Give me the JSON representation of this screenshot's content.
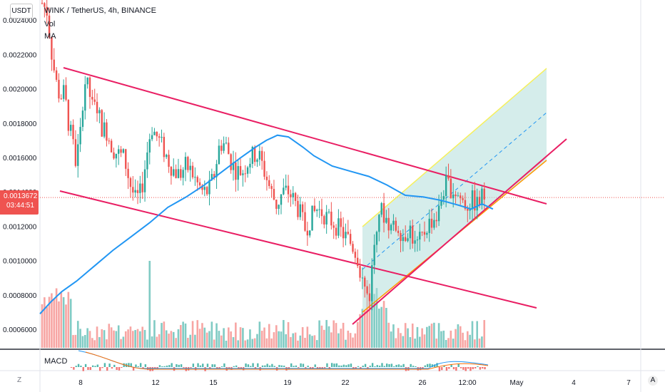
{
  "header": {
    "currency_button": "USDT",
    "symbol_title": "WINK / TetherUS, 4h, BINANCE",
    "indicator_vol": "Vol",
    "indicator_ma": "MA",
    "macd_label": "MACD"
  },
  "price_badge": {
    "price": "0.0013672",
    "countdown": "03:44:51",
    "color": "#ef5350"
  },
  "bottom_bar": {
    "left_button": "Z",
    "right_button": "A"
  },
  "colors": {
    "up": "#26a69a",
    "down": "#ef5350",
    "ma": "#2196f3",
    "channel": "#e91e63",
    "channel_fill": "#b2dfdb",
    "channel_top": "#f6f05c"
  },
  "chart_data": {
    "type": "candlestick",
    "ylim": [
      0.00048,
      0.00251
    ],
    "y_ticks": [
      "0.0006000",
      "0.0008000",
      "0.0010000",
      "0.0012000",
      "0.0014000",
      "0.0016000",
      "0.0018000",
      "0.0020000",
      "0.0022000",
      "0.0024000"
    ],
    "x_ticks": [
      "8",
      "12",
      "15",
      "19",
      "22",
      "26",
      "12:00",
      "May",
      "4",
      "7"
    ],
    "current_price": 0.0013672,
    "series": [
      {
        "name": "MA",
        "type": "line",
        "points": [
          [
            0,
            0.00069
          ],
          [
            6,
            0.00076
          ],
          [
            12,
            0.00082
          ],
          [
            20,
            0.00088
          ],
          [
            30,
            0.00097
          ],
          [
            40,
            0.00106
          ],
          [
            50,
            0.00114
          ],
          [
            60,
            0.00122
          ],
          [
            70,
            0.00131
          ],
          [
            80,
            0.00137
          ],
          [
            90,
            0.00144
          ],
          [
            100,
            0.00152
          ],
          [
            110,
            0.0016
          ],
          [
            118,
            0.00166
          ],
          [
            124,
            0.0017
          ],
          [
            130,
            0.00173
          ],
          [
            136,
            0.00172
          ],
          [
            144,
            0.00166
          ],
          [
            150,
            0.00161
          ],
          [
            160,
            0.00155
          ],
          [
            170,
            0.00152
          ],
          [
            180,
            0.00149
          ],
          [
            190,
            0.00144
          ],
          [
            200,
            0.00138
          ],
          [
            210,
            0.00137
          ],
          [
            220,
            0.00135
          ],
          [
            230,
            0.00132
          ],
          [
            236,
            0.0013
          ],
          [
            242,
            0.00133
          ],
          [
            248,
            0.0013
          ]
        ]
      }
    ]
  }
}
